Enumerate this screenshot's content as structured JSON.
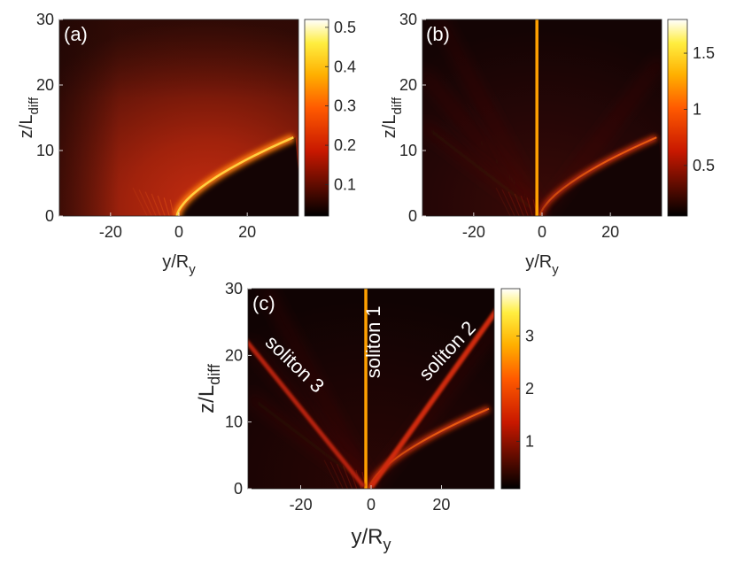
{
  "chart_data": [
    {
      "type": "heatmap",
      "panel": "(a)",
      "xlabel_main": "y/R",
      "xlabel_sub": "y",
      "ylabel_main": "z/L",
      "ylabel_sub": "diff",
      "xlim": [
        -35,
        35
      ],
      "ylim": [
        0,
        30
      ],
      "xticks": [
        -20,
        0,
        20
      ],
      "xtick_labels": [
        "-20",
        "0",
        "20"
      ],
      "yticks": [
        0,
        10,
        20,
        30
      ],
      "ytick_labels": [
        "0",
        "10",
        "20",
        "30"
      ],
      "colorbar": {
        "range": [
          0.02,
          0.52
        ],
        "ticks": [
          0.1,
          0.2,
          0.3,
          0.4,
          0.5
        ],
        "tick_labels": [
          "0.1",
          "0.2",
          "0.3",
          "0.4",
          "0.5"
        ]
      },
      "annotations": []
    },
    {
      "type": "heatmap",
      "panel": "(b)",
      "xlabel_main": "y/R",
      "xlabel_sub": "y",
      "ylabel_main": "z/L",
      "ylabel_sub": "diff",
      "xlim": [
        -35,
        35
      ],
      "ylim": [
        0,
        30
      ],
      "xticks": [
        -20,
        0,
        20
      ],
      "xtick_labels": [
        "-20",
        "0",
        "20"
      ],
      "yticks": [
        0,
        10,
        20,
        30
      ],
      "ytick_labels": [
        "0",
        "10",
        "20",
        "30"
      ],
      "colorbar": {
        "range": [
          0.05,
          1.8
        ],
        "ticks": [
          0.5,
          1,
          1.5
        ],
        "tick_labels": [
          "0.5",
          "1",
          "1.5"
        ]
      },
      "annotations": []
    },
    {
      "type": "heatmap",
      "panel": "(c)",
      "xlabel_main": "y/R",
      "xlabel_sub": "y",
      "ylabel_main": "z/L",
      "ylabel_sub": "diff",
      "xlim": [
        -35,
        35
      ],
      "ylim": [
        0,
        30
      ],
      "xticks": [
        -20,
        0,
        20
      ],
      "xtick_labels": [
        "-20",
        "0",
        "20"
      ],
      "yticks": [
        0,
        10,
        20,
        30
      ],
      "ytick_labels": [
        "0",
        "10",
        "20",
        "30"
      ],
      "colorbar": {
        "range": [
          0.1,
          3.9
        ],
        "ticks": [
          1,
          2,
          3
        ],
        "tick_labels": [
          "1",
          "2",
          "3"
        ]
      },
      "annotations": [
        {
          "text": "soliton 1",
          "y": 2.5,
          "z": 22,
          "angle": -90
        },
        {
          "text": "soliton 2",
          "y": 23,
          "z": 20,
          "angle": -47
        },
        {
          "text": "soliton 3",
          "y": -23,
          "z": 18,
          "angle": 44
        }
      ]
    }
  ]
}
